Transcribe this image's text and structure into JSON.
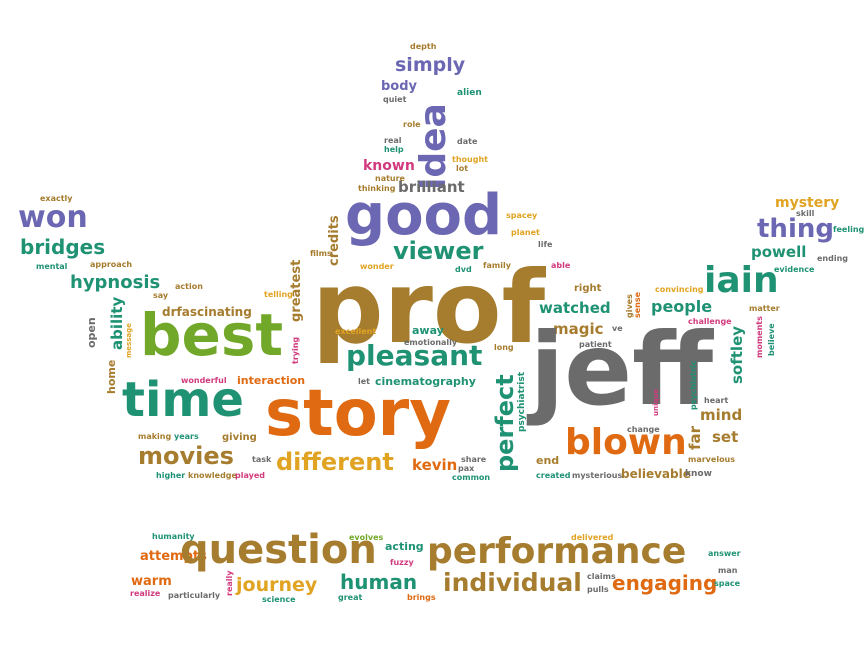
{
  "words": {
    "prof": "prof",
    "jeff": "jeff",
    "story": "story",
    "best": "best",
    "time": "time",
    "good": "good",
    "question": "question",
    "performance": "performance",
    "idea": "idea",
    "blown": "blown",
    "iain": "iain",
    "won": "won",
    "pleasant": "pleasant",
    "movies": "movies",
    "different": "different",
    "individual": "individual",
    "perfect": "perfect",
    "viewer": "viewer",
    "thing": "thing",
    "bridges": "bridges",
    "hypnosis": "hypnosis",
    "engaging": "engaging",
    "journey": "journey",
    "human": "human",
    "simply": "simply",
    "softley": "softley",
    "credits": "credits",
    "greatest": "greatest",
    "ability": "ability",
    "brilliant": "brilliant",
    "mystery": "mystery",
    "powell": "powell",
    "people": "people",
    "watched": "watched",
    "magic": "magic",
    "known": "known",
    "drfascinating": "drfascinating",
    "warm": "warm",
    "attempts": "attempts",
    "kevin": "kevin",
    "interaction": "interaction",
    "cinematography": "cinematography",
    "believable": "believable",
    "mind": "mind",
    "set": "set",
    "far": "far",
    "psychiatrist": "psychiatrist",
    "giving": "giving",
    "body": "body",
    "quiet": "quiet",
    "alien": "alien",
    "depth": "depth",
    "role": "role",
    "real": "real",
    "help": "help",
    "date": "date",
    "thought": "thought",
    "lot": "lot",
    "nature": "nature",
    "thinking": "thinking",
    "spacey": "spacey",
    "planet": "planet",
    "life": "life",
    "skill": "skill",
    "feeling": "feeling",
    "ending": "ending",
    "evidence": "evidence",
    "matter": "matter",
    "moments": "moments",
    "believe": "believe",
    "exactly": "exactly",
    "mental": "mental",
    "approach": "approach",
    "action": "action",
    "say": "say",
    "open": "open",
    "message": "message",
    "home": "home",
    "wonderful": "wonderful",
    "making": "making",
    "years": "years",
    "task": "task",
    "higher": "higher",
    "knowledge": "knowledge",
    "played": "played",
    "telling": "telling",
    "trying": "trying",
    "films": "films",
    "wonder": "wonder",
    "dvd": "dvd",
    "family": "family",
    "able": "able",
    "excellent": "excellent",
    "away": "away",
    "emotionally": "emotionally",
    "let": "let",
    "long": "long",
    "right": "right",
    "gives": "gives",
    "sense": "sense",
    "convincing": "convincing",
    "challenge": "challenge",
    "ve": "ve",
    "patient": "patient",
    "heart": "heart",
    "psychiatric": "psychiatric",
    "change": "change",
    "marvelous": "marvelous",
    "unique": "unique",
    "end": "end",
    "share": "share",
    "pax": "pax",
    "common": "common",
    "created": "created",
    "mysterious": "mysterious",
    "know": "know",
    "humanity": "humanity",
    "evolves": "evolves",
    "acting": "acting",
    "fuzzy": "fuzzy",
    "delivered": "delivered",
    "answer": "answer",
    "man": "man",
    "space": "space",
    "claims": "claims",
    "pulls": "pulls",
    "realize": "realize",
    "particularly": "particularly",
    "really": "really",
    "science": "science",
    "great": "great",
    "brings": "brings"
  }
}
